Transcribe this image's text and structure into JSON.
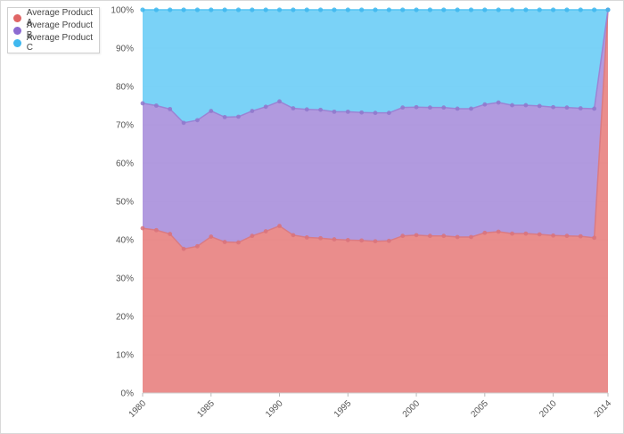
{
  "chart_data": {
    "type": "area",
    "stacked": "percent",
    "title": "",
    "xlabel": "",
    "ylabel": "",
    "xlim": [
      1980,
      2014
    ],
    "ylim": [
      0,
      100
    ],
    "legend_position": "top-left",
    "y_ticks": [
      "0%",
      "10%",
      "20%",
      "30%",
      "40%",
      "50%",
      "60%",
      "70%",
      "80%",
      "90%",
      "100%"
    ],
    "x_ticks": [
      1980,
      1985,
      1990,
      1995,
      2000,
      2005,
      2010,
      2014
    ],
    "x": [
      1980,
      1981,
      1982,
      1983,
      1984,
      1985,
      1986,
      1987,
      1988,
      1989,
      1990,
      1991,
      1992,
      1993,
      1994,
      1995,
      1996,
      1997,
      1998,
      1999,
      2000,
      2001,
      2002,
      2003,
      2004,
      2005,
      2006,
      2007,
      2008,
      2009,
      2010,
      2011,
      2012,
      2013,
      2014
    ],
    "series": [
      {
        "name": "Average Product A",
        "color": "#e8817f",
        "values": [
          43.0,
          42.5,
          41.5,
          37.6,
          38.3,
          40.8,
          39.4,
          39.3,
          41.0,
          42.2,
          43.6,
          41.2,
          40.6,
          40.4,
          40.1,
          39.9,
          39.8,
          39.6,
          39.7,
          41.0,
          41.2,
          41.0,
          41.0,
          40.7,
          40.7,
          41.8,
          42.1,
          41.6,
          41.6,
          41.4,
          41.1,
          41.0,
          40.9,
          40.5,
          100.0
        ]
      },
      {
        "name": "Average Product B",
        "color": "#a98fdb",
        "values": [
          32.6,
          32.5,
          32.6,
          32.9,
          32.9,
          32.8,
          32.6,
          32.8,
          32.6,
          32.5,
          32.5,
          33.1,
          33.4,
          33.5,
          33.3,
          33.5,
          33.4,
          33.5,
          33.4,
          33.5,
          33.4,
          33.5,
          33.5,
          33.5,
          33.5,
          33.5,
          33.7,
          33.5,
          33.5,
          33.5,
          33.5,
          33.5,
          33.4,
          33.7,
          0.0
        ]
      },
      {
        "name": "Average Product C",
        "color": "#6ccdf6",
        "values": [
          24.4,
          25.0,
          25.9,
          29.5,
          28.8,
          26.4,
          28.0,
          27.9,
          26.4,
          25.3,
          23.9,
          25.7,
          26.0,
          26.1,
          26.6,
          26.6,
          26.8,
          26.9,
          26.9,
          25.5,
          25.4,
          25.5,
          25.5,
          25.8,
          25.8,
          24.7,
          24.2,
          24.9,
          24.9,
          25.1,
          25.4,
          25.5,
          25.7,
          25.8,
          0.0
        ]
      }
    ]
  }
}
